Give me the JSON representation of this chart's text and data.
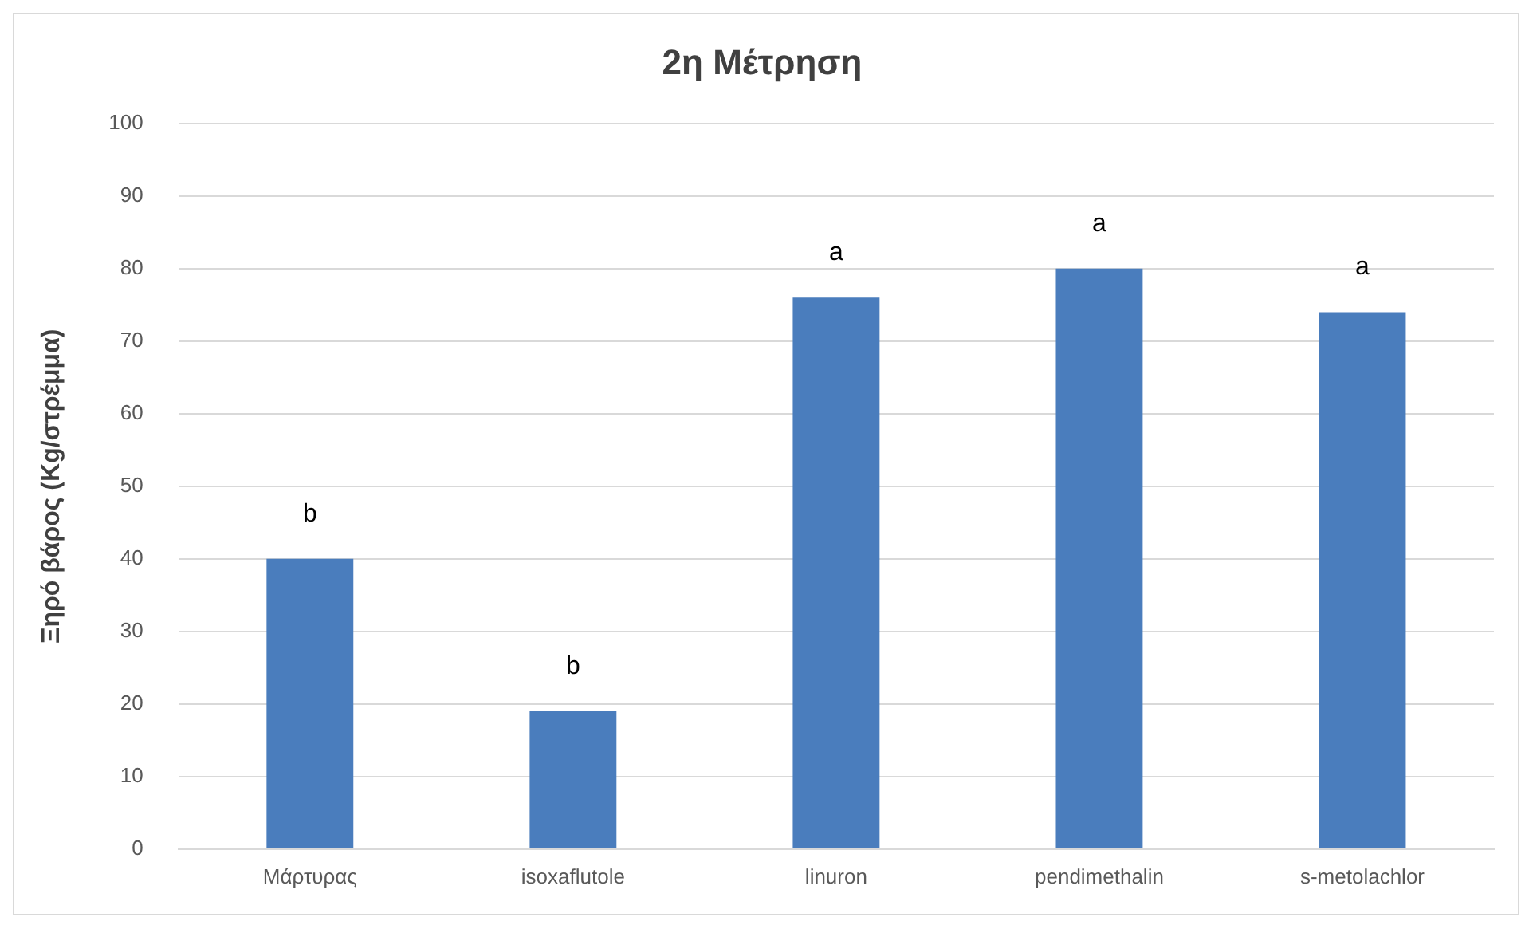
{
  "chart_data": {
    "type": "bar",
    "title": "2η Μέτρηση",
    "ylabel": "Ξηρό βάρος (Kg/στρέμμα)",
    "categories": [
      "Μάρτυρας",
      "isoxaflutole",
      "linuron",
      "pendimethalin",
      "s-metolachlor"
    ],
    "values": [
      40,
      19,
      76,
      80,
      74
    ],
    "color": "#4a7dbd",
    "ylim": [
      0,
      100
    ],
    "yticks": [
      0,
      10,
      20,
      30,
      40,
      50,
      60,
      70,
      80,
      90,
      100
    ],
    "grid": "y",
    "annotations": [
      "b",
      "b",
      "a",
      "a",
      "a"
    ]
  }
}
